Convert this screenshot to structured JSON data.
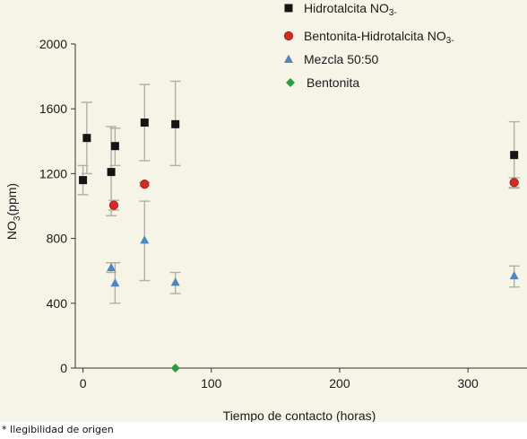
{
  "chart_data": {
    "type": "scatter",
    "xlabel": "Tiempo de contacto (horas)",
    "ylabel": "NO3(ppm)",
    "xlim": [
      -6,
      346
    ],
    "ylim": [
      0,
      2000
    ],
    "xticks": [
      0,
      100,
      200,
      300
    ],
    "yticks": [
      0,
      400,
      800,
      1200,
      1600,
      2000
    ],
    "grid": false,
    "legend_position": "top-right",
    "series": [
      {
        "name": "Hidrotalcita NO3-",
        "marker": "square",
        "color": "#141414",
        "points": [
          {
            "x": 0,
            "y": 1160,
            "err_low": 1070,
            "err_high": 1250
          },
          {
            "x": 3,
            "y": 1420,
            "err_low": 1200,
            "err_high": 1640
          },
          {
            "x": 22,
            "y": 1210,
            "err_low": 940,
            "err_high": 1490
          },
          {
            "x": 25,
            "y": 1370,
            "err_low": 1250,
            "err_high": 1480
          },
          {
            "x": 48,
            "y": 1515,
            "err_low": 1280,
            "err_high": 1750
          },
          {
            "x": 72,
            "y": 1505,
            "err_low": 1250,
            "err_high": 1770
          },
          {
            "x": 336,
            "y": 1315,
            "err_low": 1110,
            "err_high": 1520
          }
        ]
      },
      {
        "name": "Bentonita-Hidrotalcita NO3-",
        "marker": "circle",
        "color": "#d42a25",
        "points": [
          {
            "x": 24,
            "y": 1005,
            "err_low": 975,
            "err_high": 1035
          },
          {
            "x": 48,
            "y": 1135,
            "err_low": 1125,
            "err_high": 1145
          },
          {
            "x": 336,
            "y": 1145,
            "err_low": 1115,
            "err_high": 1175
          }
        ]
      },
      {
        "name": "Mezcla 50:50",
        "marker": "triangle",
        "color": "#4e86c0",
        "points": [
          {
            "x": 22,
            "y": 620,
            "err_low": 590,
            "err_high": 650
          },
          {
            "x": 25,
            "y": 525,
            "err_low": 400,
            "err_high": 650
          },
          {
            "x": 48,
            "y": 790,
            "err_low": 540,
            "err_high": 1030
          },
          {
            "x": 72,
            "y": 530,
            "err_low": 460,
            "err_high": 590
          },
          {
            "x": 336,
            "y": 570,
            "err_low": 500,
            "err_high": 630
          }
        ]
      },
      {
        "name": "Bentonita",
        "marker": "diamond",
        "color": "#2e9a3e",
        "points": [
          {
            "x": 72,
            "y": 0,
            "err_low": 0,
            "err_high": 0
          }
        ]
      }
    ]
  },
  "footnote": "* Ilegibilidad de origen"
}
